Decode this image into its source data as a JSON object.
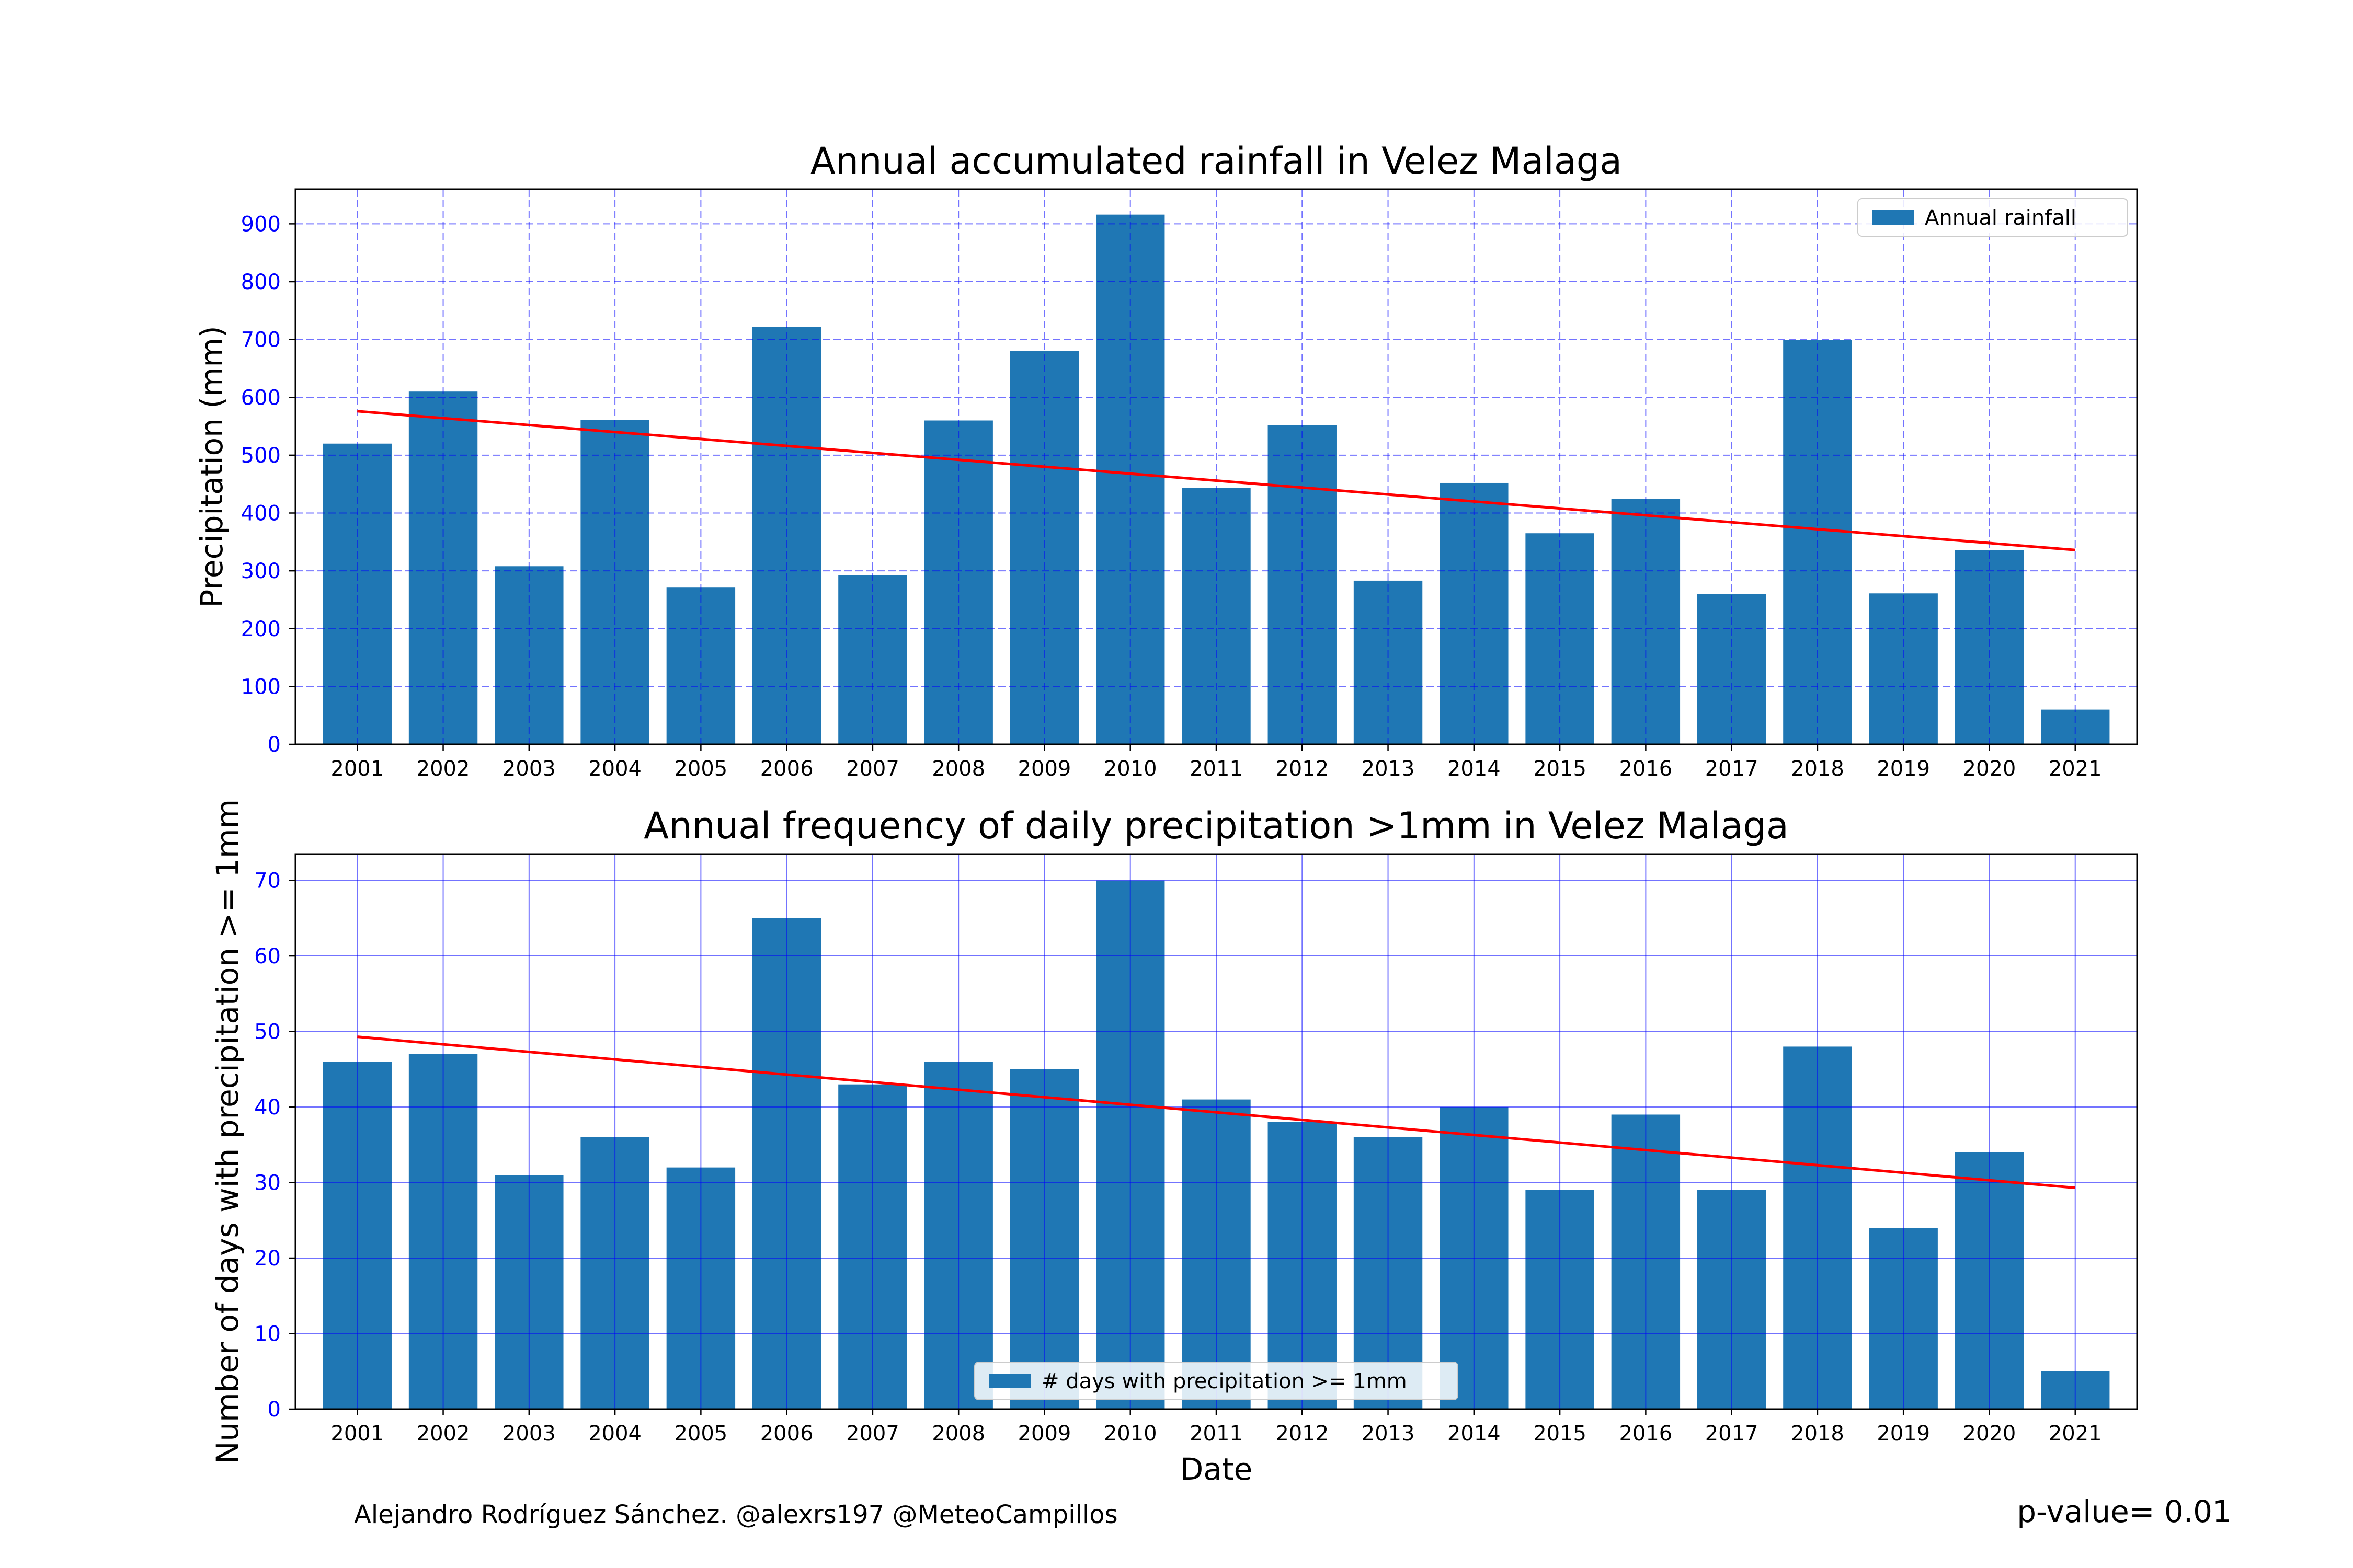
{
  "footer": {
    "credit": "Alejandro Rodríguez Sánchez. @alexrs197 @MeteoCampillos",
    "pvalue": "p-value= 0.01"
  },
  "colors": {
    "bar": "#1f77b4",
    "trend": "#ff0000",
    "grid": "#0000ff",
    "tick_label": "#0000ff"
  },
  "chart_data": [
    {
      "type": "bar",
      "title": "Annual accumulated rainfall in Velez Malaga",
      "xlabel": "",
      "ylabel": "Precipitation (mm)",
      "categories": [
        "2001",
        "2002",
        "2003",
        "2004",
        "2005",
        "2006",
        "2007",
        "2008",
        "2009",
        "2010",
        "2011",
        "2012",
        "2013",
        "2014",
        "2015",
        "2016",
        "2017",
        "2018",
        "2019",
        "2020",
        "2021"
      ],
      "series": [
        {
          "name": "Annual rainfall",
          "values": [
            520,
            610,
            308,
            561,
            271,
            722,
            292,
            560,
            680,
            916,
            443,
            552,
            283,
            452,
            365,
            424,
            260,
            699,
            261,
            336,
            60
          ]
        }
      ],
      "trend": {
        "start": 576,
        "end": 336
      },
      "ylim": [
        0,
        960
      ],
      "yticks": [
        0,
        100,
        200,
        300,
        400,
        500,
        600,
        700,
        800,
        900
      ],
      "grid": "dashed",
      "legend": "top-right"
    },
    {
      "type": "bar",
      "title": "Annual frequency of daily precipitation >1mm in Velez Malaga",
      "xlabel": "Date",
      "ylabel": "Number of days with precipitation >= 1mm",
      "categories": [
        "2001",
        "2002",
        "2003",
        "2004",
        "2005",
        "2006",
        "2007",
        "2008",
        "2009",
        "2010",
        "2011",
        "2012",
        "2013",
        "2014",
        "2015",
        "2016",
        "2017",
        "2018",
        "2019",
        "2020",
        "2021"
      ],
      "series": [
        {
          "name": "# days with precipitation >= 1mm",
          "values": [
            46,
            47,
            31,
            36,
            32,
            65,
            43,
            46,
            45,
            70,
            41,
            38,
            36,
            40,
            29,
            39,
            29,
            48,
            24,
            34,
            5
          ]
        }
      ],
      "trend": {
        "start": 49.3,
        "end": 29.3
      },
      "ylim": [
        0,
        73.5
      ],
      "yticks": [
        0,
        10,
        20,
        30,
        40,
        50,
        60,
        70
      ],
      "grid": "solid",
      "legend": "bottom-center"
    }
  ]
}
